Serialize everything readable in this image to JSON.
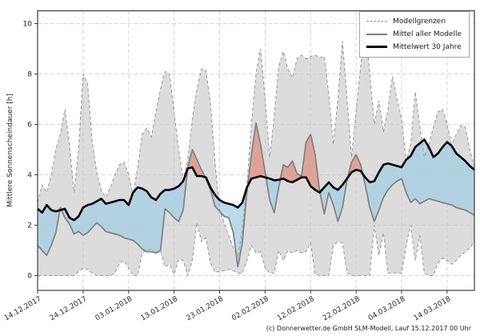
{
  "figure": {
    "y_axis_label": "Mittlere Sonnenscheindauer [h]",
    "footer": "(c) Donnerwetter.de GmbH SLM-Modell, Lauf 15.12.2017 00 Uhr"
  },
  "legend": {
    "items": [
      {
        "label": "Modellgrenzen",
        "line_style": "dashed-gray"
      },
      {
        "label": "Mittel aller Modelle",
        "line_style": "solid-gray"
      },
      {
        "label": "Mittelwert 30 Jahre",
        "line_style": "thick-black"
      }
    ]
  },
  "colors": {
    "band_fill": "#dcdcdc",
    "band_edge": "#969696",
    "model_mean_line": "#7f7f7f",
    "climate_mean_line": "#000000",
    "above_fill": "#e09488",
    "below_fill": "#a8cfe3",
    "grid": "#c9c9c9",
    "frame": "#3c3c3c",
    "tick_text": "#262626"
  },
  "chart_data": {
    "type": "line",
    "title": "",
    "xlabel": "",
    "ylabel": "Mittlere Sonnenscheindauer [h]",
    "ylim": [
      -0.59,
      10.53
    ],
    "yticks": [
      0,
      2,
      4,
      6,
      8,
      10
    ],
    "grid": true,
    "legend_position": "upper right",
    "n_points": 97,
    "x_start_date": "14.12.2017",
    "x_tick_positions": [
      0,
      10,
      20,
      30,
      40,
      50,
      60,
      70,
      80,
      90
    ],
    "x_tick_labels": [
      "14.12.2017",
      "24.12.2017",
      "03.01.2018",
      "13.01.2018",
      "23.01.2018",
      "02.02.2018",
      "12.02.2018",
      "22.02.2018",
      "04.03.2018",
      "14.03.2018"
    ],
    "fills": [
      {
        "name": "Modellgrenzen-Band",
        "between": [
          "model_max",
          "model_min"
        ],
        "color": "#dcdcdc"
      },
      {
        "name": "Modellmittel unter 30-Jahre-Mittel",
        "between": [
          "climate_mean",
          "model_mean"
        ],
        "where": "model_mean < climate_mean",
        "color": "#a8cfe3"
      },
      {
        "name": "Modellmittel ueber 30-Jahre-Mittel",
        "between": [
          "model_mean",
          "climate_mean"
        ],
        "where": "model_mean > climate_mean",
        "color": "#e09488"
      }
    ],
    "series": [
      {
        "name": "Modellgrenzen (oberes Band)",
        "role": "upper",
        "values": [
          2.9,
          3.6,
          3.3,
          4.0,
          5.0,
          5.6,
          6.6,
          5.2,
          3.3,
          5.0,
          8.0,
          7.6,
          5.3,
          4.1,
          3.4,
          3.1,
          3.5,
          4.0,
          4.4,
          4.5,
          4.0,
          3.2,
          4.3,
          5.6,
          5.85,
          5.5,
          6.5,
          7.4,
          8.1,
          8.0,
          6.5,
          5.0,
          3.8,
          4.6,
          6.2,
          7.4,
          8.2,
          8.15,
          6.8,
          4.5,
          2.6,
          2.1,
          1.6,
          1.1,
          0.8,
          1.8,
          3.6,
          6.0,
          8.0,
          9.0,
          7.0,
          4.7,
          6.3,
          8.3,
          8.9,
          8.2,
          7.85,
          8.6,
          8.75,
          8.6,
          8.7,
          8.75,
          8.65,
          8.7,
          7.2,
          5.2,
          7.0,
          9.3,
          7.0,
          4.7,
          6.5,
          8.3,
          10.0,
          8.0,
          6.0,
          6.95,
          5.7,
          6.6,
          7.9,
          7.0,
          6.2,
          4.55,
          5.2,
          7.3,
          5.9,
          4.7,
          5.2,
          5.9,
          6.5,
          6.6,
          6.0,
          5.2,
          5.6,
          5.95,
          5.9,
          5.0,
          4.3
        ]
      },
      {
        "name": "Modellgrenzen (unteres Band)",
        "role": "lower",
        "values": [
          0,
          0,
          0,
          0,
          0,
          0,
          0,
          0,
          0,
          0.15,
          0.3,
          0.25,
          0.1,
          0,
          0,
          0,
          0,
          0.1,
          0.5,
          0.6,
          0.3,
          0,
          0,
          0.9,
          1.0,
          1.05,
          0.85,
          1.0,
          0.35,
          0.45,
          0.05,
          0.65,
          0.6,
          0,
          0.6,
          2.1,
          1.35,
          1.5,
          0.5,
          0.15,
          0.15,
          0.2,
          0.25,
          0.2,
          0.1,
          0.1,
          0.6,
          1.2,
          0.9,
          0.95,
          0.3,
          0.1,
          0.1,
          1.0,
          0.6,
          1.0,
          0.9,
          1.0,
          0.9,
          0.95,
          1.3,
          0.05,
          0,
          0,
          0,
          1.2,
          1.35,
          1.3,
          0.1,
          0,
          0,
          0,
          0,
          0,
          2.0,
          0.8,
          1.7,
          0.1,
          0.1,
          0.1,
          0.1,
          1.2,
          2.0,
          0.6,
          1.6,
          0.1,
          0,
          0,
          0.5,
          0.7,
          0.6,
          0.45,
          0.6,
          0.8,
          0.95,
          1.1,
          1.35
        ]
      },
      {
        "name": "Mittel aller Modelle",
        "role": "model_mean",
        "values": [
          1.2,
          1.0,
          0.8,
          1.2,
          1.7,
          2.7,
          2.3,
          2.05,
          1.65,
          1.75,
          1.6,
          1.7,
          1.9,
          2.1,
          1.95,
          1.75,
          1.7,
          1.65,
          1.6,
          1.5,
          1.45,
          1.4,
          1.25,
          1.05,
          0.95,
          0.95,
          0.9,
          1.0,
          2.65,
          2.5,
          2.3,
          2.15,
          2.6,
          4.3,
          5.0,
          4.6,
          4.2,
          3.85,
          3.4,
          2.75,
          2.55,
          2.35,
          2.3,
          1.7,
          0.35,
          1.3,
          3.3,
          4.8,
          6.05,
          5.2,
          4.1,
          3.0,
          2.5,
          3.5,
          4.4,
          4.3,
          4.55,
          4.05,
          3.95,
          5.3,
          5.6,
          4.8,
          3.35,
          2.45,
          3.3,
          2.8,
          2.15,
          2.7,
          3.8,
          4.5,
          4.8,
          4.4,
          3.6,
          2.7,
          2.15,
          2.6,
          3.1,
          3.4,
          3.6,
          3.75,
          3.85,
          3.3,
          2.9,
          3.05,
          2.85,
          2.95,
          3.05,
          3.0,
          2.95,
          2.9,
          2.85,
          2.8,
          2.7,
          2.65,
          2.6,
          2.5,
          2.4
        ]
      },
      {
        "name": "Mittelwert 30 Jahre",
        "role": "climate_mean",
        "values": [
          2.65,
          2.5,
          2.8,
          2.6,
          2.55,
          2.6,
          2.65,
          2.3,
          2.2,
          2.35,
          2.7,
          2.8,
          2.85,
          2.95,
          3.05,
          2.85,
          2.9,
          2.95,
          3.0,
          3.0,
          2.8,
          3.3,
          3.5,
          3.45,
          3.35,
          3.1,
          3.0,
          3.25,
          3.4,
          3.4,
          3.45,
          3.55,
          3.75,
          4.25,
          4.3,
          3.95,
          3.95,
          3.9,
          3.5,
          3.2,
          3.0,
          2.9,
          2.85,
          2.8,
          2.7,
          2.9,
          3.5,
          3.85,
          3.9,
          3.95,
          3.9,
          3.85,
          3.78,
          3.8,
          3.85,
          3.75,
          3.7,
          3.8,
          3.9,
          3.9,
          3.55,
          3.4,
          3.3,
          3.5,
          3.7,
          3.5,
          3.4,
          3.6,
          3.85,
          4.1,
          4.2,
          4.15,
          3.9,
          3.7,
          3.75,
          4.1,
          4.4,
          4.45,
          4.4,
          4.35,
          4.3,
          4.6,
          4.75,
          5.1,
          5.25,
          5.4,
          5.1,
          4.7,
          4.85,
          5.1,
          5.3,
          5.15,
          4.85,
          4.7,
          4.55,
          4.35,
          4.2
        ]
      }
    ]
  }
}
